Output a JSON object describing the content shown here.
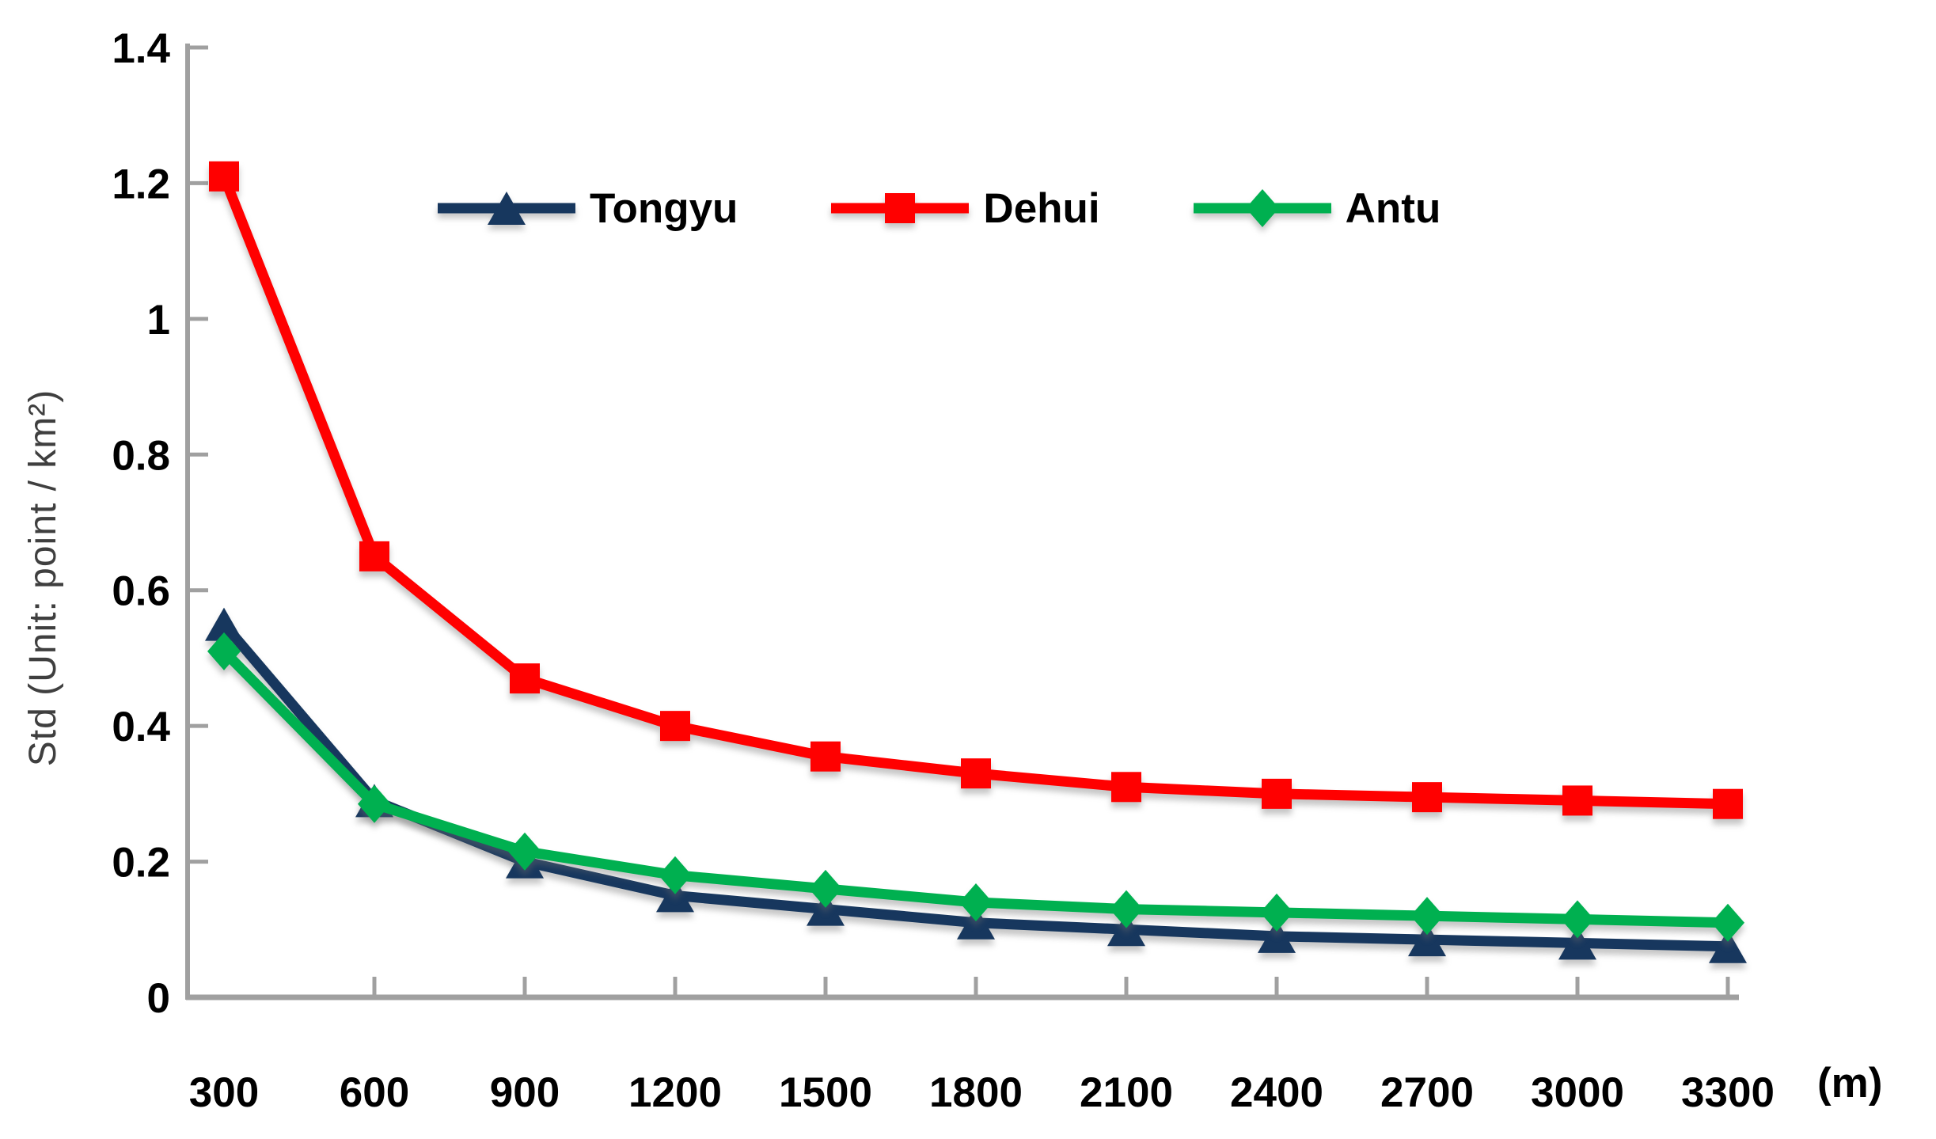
{
  "chart_data": {
    "type": "line",
    "x": [
      300,
      600,
      900,
      1200,
      1500,
      1800,
      2100,
      2400,
      2700,
      3000,
      3300
    ],
    "x_unit_label": "(m)",
    "ylabel": "Std (Unit: point / km²)",
    "ylim": [
      0,
      1.4
    ],
    "ytick_step": 0.2,
    "ytick_labels": [
      "0",
      "0.2",
      "0.4",
      "0.6",
      "0.8",
      "1",
      "1.2",
      "1.4"
    ],
    "grid": false,
    "legend_position": "top-center",
    "axis_color": "#a0a0a0",
    "text_color": "#000000",
    "series": [
      {
        "name": "Tongyu",
        "color": "#17375e",
        "marker": "triangle",
        "values": [
          0.55,
          0.29,
          0.2,
          0.15,
          0.13,
          0.11,
          0.1,
          0.09,
          0.085,
          0.08,
          0.075
        ]
      },
      {
        "name": "Dehui",
        "color": "#ff0000",
        "marker": "square",
        "values": [
          1.21,
          0.65,
          0.47,
          0.4,
          0.355,
          0.33,
          0.31,
          0.3,
          0.295,
          0.29,
          0.285
        ]
      },
      {
        "name": "Antu",
        "color": "#00b050",
        "marker": "diamond",
        "values": [
          0.51,
          0.285,
          0.215,
          0.18,
          0.16,
          0.14,
          0.13,
          0.125,
          0.12,
          0.115,
          0.11
        ]
      }
    ]
  }
}
